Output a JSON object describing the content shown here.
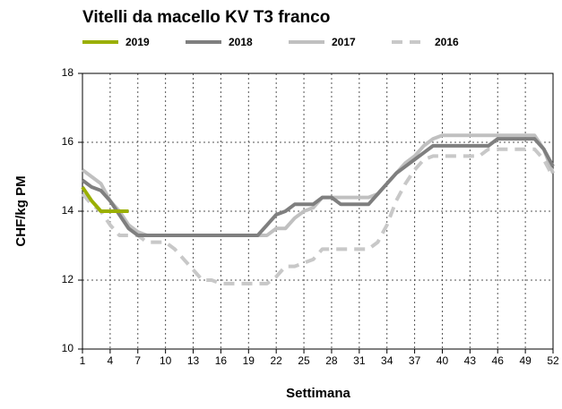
{
  "chart_data": {
    "type": "line",
    "title": "Vitelli da macello KV T3 franco",
    "x_label": "Settimana",
    "y_label": "CHF/kg PM",
    "x": [
      1,
      2,
      3,
      4,
      5,
      6,
      7,
      8,
      9,
      10,
      11,
      12,
      13,
      14,
      15,
      16,
      17,
      18,
      19,
      20,
      21,
      22,
      23,
      24,
      25,
      26,
      27,
      28,
      29,
      30,
      31,
      32,
      33,
      34,
      35,
      36,
      37,
      38,
      39,
      40,
      41,
      42,
      43,
      44,
      45,
      46,
      47,
      48,
      49,
      50,
      51,
      52
    ],
    "xlim": [
      1,
      52
    ],
    "xticks": [
      1,
      4,
      7,
      10,
      13,
      16,
      19,
      22,
      25,
      28,
      31,
      34,
      37,
      40,
      43,
      46,
      49,
      52
    ],
    "ylim": [
      10,
      18
    ],
    "yticks": [
      10,
      12,
      14,
      16,
      18
    ],
    "grid": true,
    "series": [
      {
        "name": "2019",
        "color": "#9aaf00",
        "values": [
          14.7,
          14.3,
          14.0,
          14.0,
          14.0,
          14.0,
          null,
          null,
          null,
          null,
          null,
          null,
          null,
          null,
          null,
          null,
          null,
          null,
          null,
          null,
          null,
          null,
          null,
          null,
          null,
          null,
          null,
          null,
          null,
          null,
          null,
          null,
          null,
          null,
          null,
          null,
          null,
          null,
          null,
          null,
          null,
          null,
          null,
          null,
          null,
          null,
          null,
          null,
          null,
          null,
          null,
          null
        ]
      },
      {
        "name": "2018",
        "color": "#7f7f7f",
        "values": [
          14.9,
          14.7,
          14.6,
          14.3,
          13.9,
          13.5,
          13.3,
          13.3,
          13.3,
          13.3,
          13.3,
          13.3,
          13.3,
          13.3,
          13.3,
          13.3,
          13.3,
          13.3,
          13.3,
          13.3,
          13.6,
          13.9,
          14.0,
          14.2,
          14.2,
          14.2,
          14.4,
          14.4,
          14.2,
          14.2,
          14.2,
          14.2,
          14.5,
          14.8,
          15.1,
          15.3,
          15.5,
          15.7,
          15.9,
          15.9,
          15.9,
          15.9,
          15.9,
          15.9,
          15.9,
          16.1,
          16.1,
          16.1,
          16.1,
          16.1,
          15.8,
          15.3
        ]
      },
      {
        "name": "2017",
        "color": "#c0c0c0",
        "values": [
          15.2,
          15.0,
          14.8,
          14.3,
          14.0,
          13.6,
          13.4,
          13.3,
          13.3,
          13.3,
          13.3,
          13.3,
          13.3,
          13.3,
          13.3,
          13.3,
          13.3,
          13.3,
          13.3,
          13.3,
          13.3,
          13.5,
          13.5,
          13.8,
          14.0,
          14.1,
          14.4,
          14.4,
          14.4,
          14.4,
          14.4,
          14.4,
          14.5,
          14.8,
          15.1,
          15.4,
          15.6,
          15.9,
          16.1,
          16.2,
          16.2,
          16.2,
          16.2,
          16.2,
          16.2,
          16.2,
          16.2,
          16.2,
          16.2,
          16.2,
          15.8,
          15.1
        ]
      },
      {
        "name": "2016",
        "color": "#c8c8c8",
        "dashed": true,
        "values": [
          14.5,
          14.2,
          14.0,
          13.6,
          13.3,
          13.3,
          13.3,
          13.1,
          13.1,
          13.1,
          12.9,
          12.6,
          12.3,
          12.0,
          12.0,
          11.9,
          11.9,
          11.9,
          11.9,
          11.9,
          11.9,
          12.1,
          12.4,
          12.4,
          12.5,
          12.6,
          12.9,
          12.9,
          12.9,
          12.9,
          12.9,
          12.9,
          13.1,
          13.6,
          14.3,
          14.8,
          15.2,
          15.5,
          15.6,
          15.6,
          15.6,
          15.6,
          15.6,
          15.6,
          15.8,
          15.8,
          15.8,
          15.8,
          15.8,
          15.8,
          15.5,
          15.0
        ]
      }
    ]
  }
}
